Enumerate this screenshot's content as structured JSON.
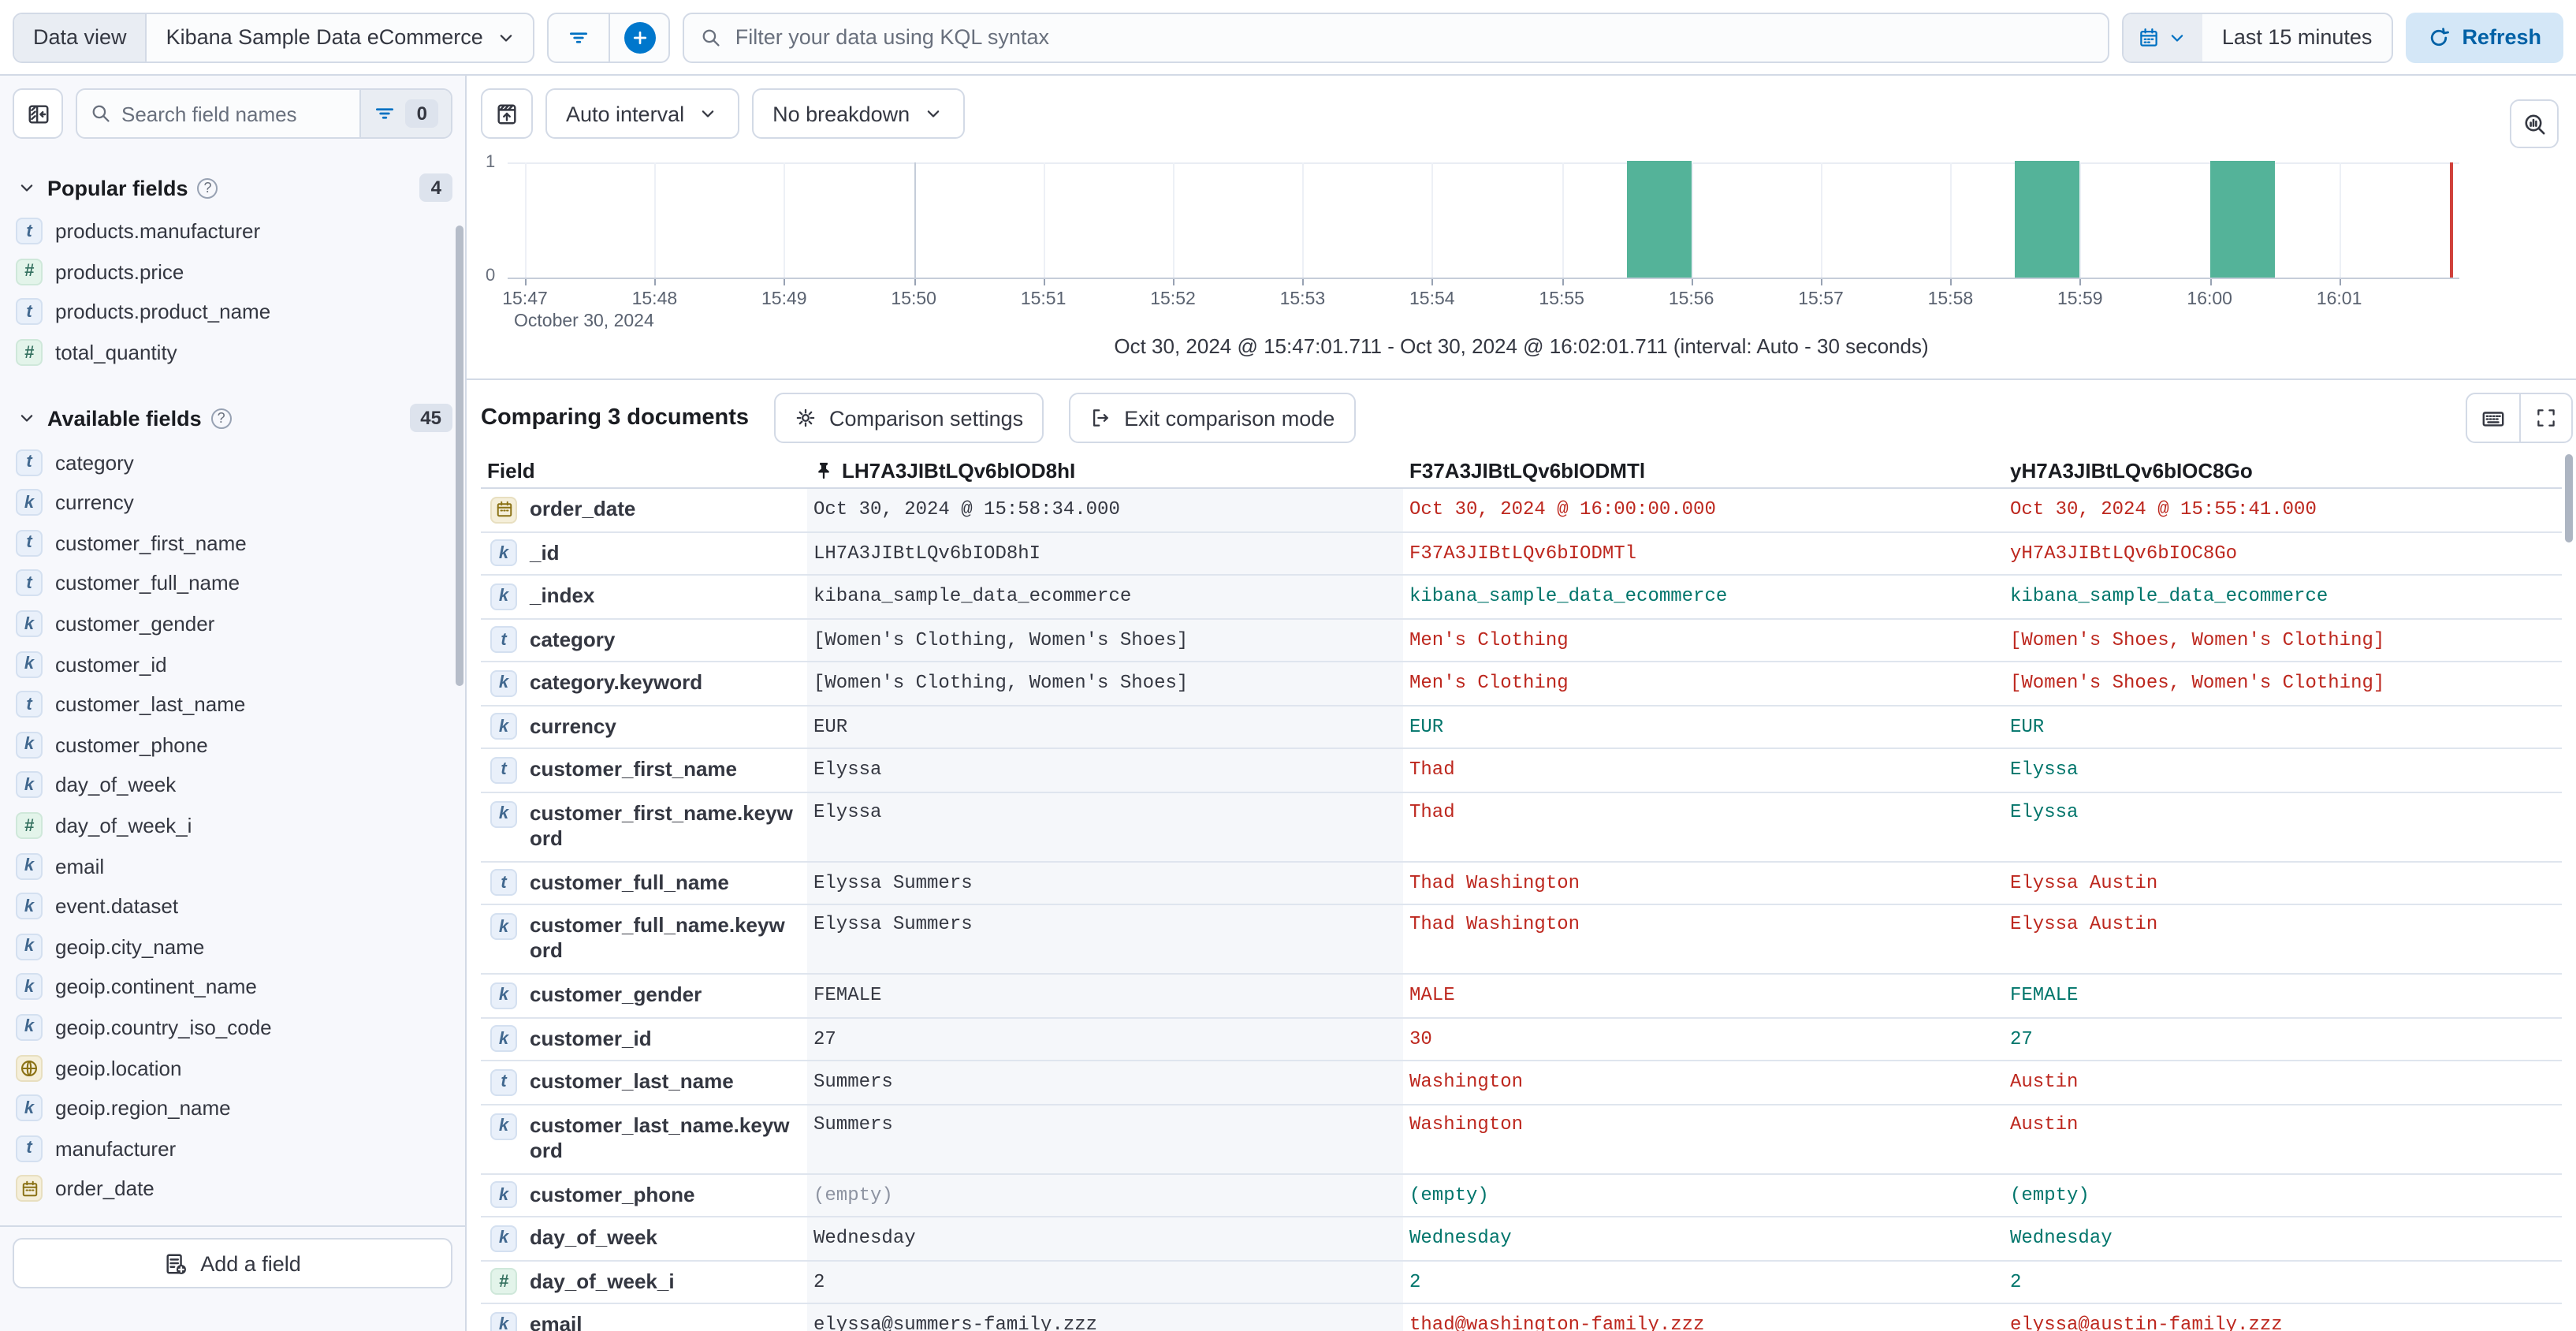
{
  "top_bar": {
    "data_view_label": "Data view",
    "data_view_value": "Kibana Sample Data eCommerce",
    "kql_placeholder": "Filter your data using KQL syntax",
    "time_range": "Last 15 minutes",
    "refresh_label": "Refresh"
  },
  "sidebar": {
    "search_placeholder": "Search field names",
    "filter_count": "0",
    "sections": [
      {
        "title": "Popular fields",
        "count": "4",
        "items": [
          {
            "type": "t",
            "name": "products.manufacturer"
          },
          {
            "type": "n",
            "name": "products.price"
          },
          {
            "type": "t",
            "name": "products.product_name"
          },
          {
            "type": "n",
            "name": "total_quantity"
          }
        ]
      },
      {
        "title": "Available fields",
        "count": "45",
        "items": [
          {
            "type": "t",
            "name": "category"
          },
          {
            "type": "k",
            "name": "currency"
          },
          {
            "type": "t",
            "name": "customer_first_name"
          },
          {
            "type": "t",
            "name": "customer_full_name"
          },
          {
            "type": "k",
            "name": "customer_gender"
          },
          {
            "type": "k",
            "name": "customer_id"
          },
          {
            "type": "t",
            "name": "customer_last_name"
          },
          {
            "type": "k",
            "name": "customer_phone"
          },
          {
            "type": "k",
            "name": "day_of_week"
          },
          {
            "type": "n",
            "name": "day_of_week_i"
          },
          {
            "type": "k",
            "name": "email"
          },
          {
            "type": "k",
            "name": "event.dataset"
          },
          {
            "type": "k",
            "name": "geoip.city_name"
          },
          {
            "type": "k",
            "name": "geoip.continent_name"
          },
          {
            "type": "k",
            "name": "geoip.country_iso_code"
          },
          {
            "type": "geo",
            "name": "geoip.location"
          },
          {
            "type": "k",
            "name": "geoip.region_name"
          },
          {
            "type": "t",
            "name": "manufacturer"
          },
          {
            "type": "date",
            "name": "order_date"
          }
        ]
      }
    ],
    "add_field_label": "Add a field"
  },
  "chart": {
    "interval_label": "Auto interval",
    "breakdown_label": "No breakdown",
    "range_summary": "Oct 30, 2024 @ 15:47:01.711 - Oct 30, 2024 @ 16:02:01.711 (interval: Auto - 30 seconds)"
  },
  "chart_data": {
    "type": "bar",
    "title": "Discover document count histogram",
    "x_ticks": [
      "15:47",
      "15:48",
      "15:49",
      "15:50",
      "15:51",
      "15:52",
      "15:53",
      "15:54",
      "15:55",
      "15:56",
      "15:57",
      "15:58",
      "15:59",
      "16:00",
      "16:01"
    ],
    "x_date_label": "October 30, 2024",
    "y_ticks": [
      "1",
      "0"
    ],
    "ylim": [
      0,
      1
    ],
    "interval_seconds": 30,
    "bars": [
      {
        "time": "15:55:30",
        "value": 1
      },
      {
        "time": "15:58:30",
        "value": 1
      },
      {
        "time": "16:00:00",
        "value": 1
      }
    ],
    "major_gridlines": [
      "15:50",
      "16:00"
    ],
    "time_range_start": "15:47:01.711",
    "time_range_end": "16:02:01.711",
    "legend": "off",
    "grid": "on"
  },
  "comparison": {
    "title": "Comparing 3 documents",
    "settings_label": "Comparison settings",
    "exit_label": "Exit comparison mode",
    "field_column_label": "Field",
    "doc_columns": [
      "LH7A3JIBtLQv6bIOD8hI",
      "F37A3JIBtLQv6bIODMTl",
      "yH7A3JIBtLQv6bIOC8Go"
    ],
    "rows": [
      {
        "type": "date",
        "field": "order_date",
        "base": "Oct 30, 2024 @ 15:58:34.000",
        "cells": [
          {
            "v": "Oct 30, 2024 @ 16:00:00.000",
            "s": "diff"
          },
          {
            "v": "Oct 30, 2024 @ 15:55:41.000",
            "s": "diff"
          }
        ]
      },
      {
        "type": "k",
        "field": "_id",
        "base": "LH7A3JIBtLQv6bIOD8hI",
        "cells": [
          {
            "v": "F37A3JIBtLQv6bIODMTl",
            "s": "diff"
          },
          {
            "v": "yH7A3JIBtLQv6bIOC8Go",
            "s": "diff"
          }
        ]
      },
      {
        "type": "k",
        "field": "_index",
        "base": "kibana_sample_data_ecommerce",
        "cells": [
          {
            "v": "kibana_sample_data_ecommerce",
            "s": "same"
          },
          {
            "v": "kibana_sample_data_ecommerce",
            "s": "same"
          }
        ]
      },
      {
        "type": "t",
        "field": "category",
        "base": "[Women's Clothing, Women's Shoes]",
        "cells": [
          {
            "v": "Men's Clothing",
            "s": "diff"
          },
          {
            "v": "[Women's Shoes, Women's Clothing]",
            "s": "diff"
          }
        ]
      },
      {
        "type": "k",
        "field": "category.keyword",
        "base": "[Women's Clothing, Women's Shoes]",
        "cells": [
          {
            "v": "Men's Clothing",
            "s": "diff"
          },
          {
            "v": "[Women's Shoes, Women's Clothing]",
            "s": "diff"
          }
        ]
      },
      {
        "type": "k",
        "field": "currency",
        "base": "EUR",
        "cells": [
          {
            "v": "EUR",
            "s": "same"
          },
          {
            "v": "EUR",
            "s": "same"
          }
        ]
      },
      {
        "type": "t",
        "field": "customer_first_name",
        "base": "Elyssa",
        "cells": [
          {
            "v": "Thad",
            "s": "diff"
          },
          {
            "v": "Elyssa",
            "s": "same"
          }
        ]
      },
      {
        "type": "k",
        "field": "customer_first_name.keyword",
        "tall": true,
        "base": "Elyssa",
        "cells": [
          {
            "v": "Thad",
            "s": "diff"
          },
          {
            "v": "Elyssa",
            "s": "same"
          }
        ]
      },
      {
        "type": "t",
        "field": "customer_full_name",
        "base": "Elyssa Summers",
        "cells": [
          {
            "v": "Thad Washington",
            "s": "diff"
          },
          {
            "v": "Elyssa Austin",
            "s": "diff"
          }
        ]
      },
      {
        "type": "k",
        "field": "customer_full_name.keyword",
        "tall": true,
        "base": "Elyssa Summers",
        "cells": [
          {
            "v": "Thad Washington",
            "s": "diff"
          },
          {
            "v": "Elyssa Austin",
            "s": "diff"
          }
        ]
      },
      {
        "type": "k",
        "field": "customer_gender",
        "base": "FEMALE",
        "cells": [
          {
            "v": "MALE",
            "s": "diff"
          },
          {
            "v": "FEMALE",
            "s": "same"
          }
        ]
      },
      {
        "type": "k",
        "field": "customer_id",
        "base": "27",
        "cells": [
          {
            "v": "30",
            "s": "diff"
          },
          {
            "v": "27",
            "s": "same"
          }
        ]
      },
      {
        "type": "t",
        "field": "customer_last_name",
        "base": "Summers",
        "cells": [
          {
            "v": "Washington",
            "s": "diff"
          },
          {
            "v": "Austin",
            "s": "diff"
          }
        ]
      },
      {
        "type": "k",
        "field": "customer_last_name.keyword",
        "tall": true,
        "base": "Summers",
        "cells": [
          {
            "v": "Washington",
            "s": "diff"
          },
          {
            "v": "Austin",
            "s": "diff"
          }
        ]
      },
      {
        "type": "k",
        "field": "customer_phone",
        "base": "(empty)",
        "base_empty": true,
        "cells": [
          {
            "v": "(empty)",
            "s": "same"
          },
          {
            "v": "(empty)",
            "s": "same"
          }
        ]
      },
      {
        "type": "k",
        "field": "day_of_week",
        "base": "Wednesday",
        "cells": [
          {
            "v": "Wednesday",
            "s": "same"
          },
          {
            "v": "Wednesday",
            "s": "same"
          }
        ]
      },
      {
        "type": "n",
        "field": "day_of_week_i",
        "base": "2",
        "cells": [
          {
            "v": "2",
            "s": "same"
          },
          {
            "v": "2",
            "s": "same"
          }
        ]
      },
      {
        "type": "k",
        "field": "email",
        "base": "elyssa@summers-family.zzz",
        "cells": [
          {
            "v": "thad@washington-family.zzz",
            "s": "diff"
          },
          {
            "v": "elyssa@austin-family.zzz",
            "s": "diff"
          }
        ]
      }
    ]
  },
  "colors": {
    "accent_blue": "#0071c2",
    "bar_green": "#54b399",
    "diff_red": "#bd271e",
    "match_green": "#00756b",
    "time_marker_red": "#d0413b"
  }
}
